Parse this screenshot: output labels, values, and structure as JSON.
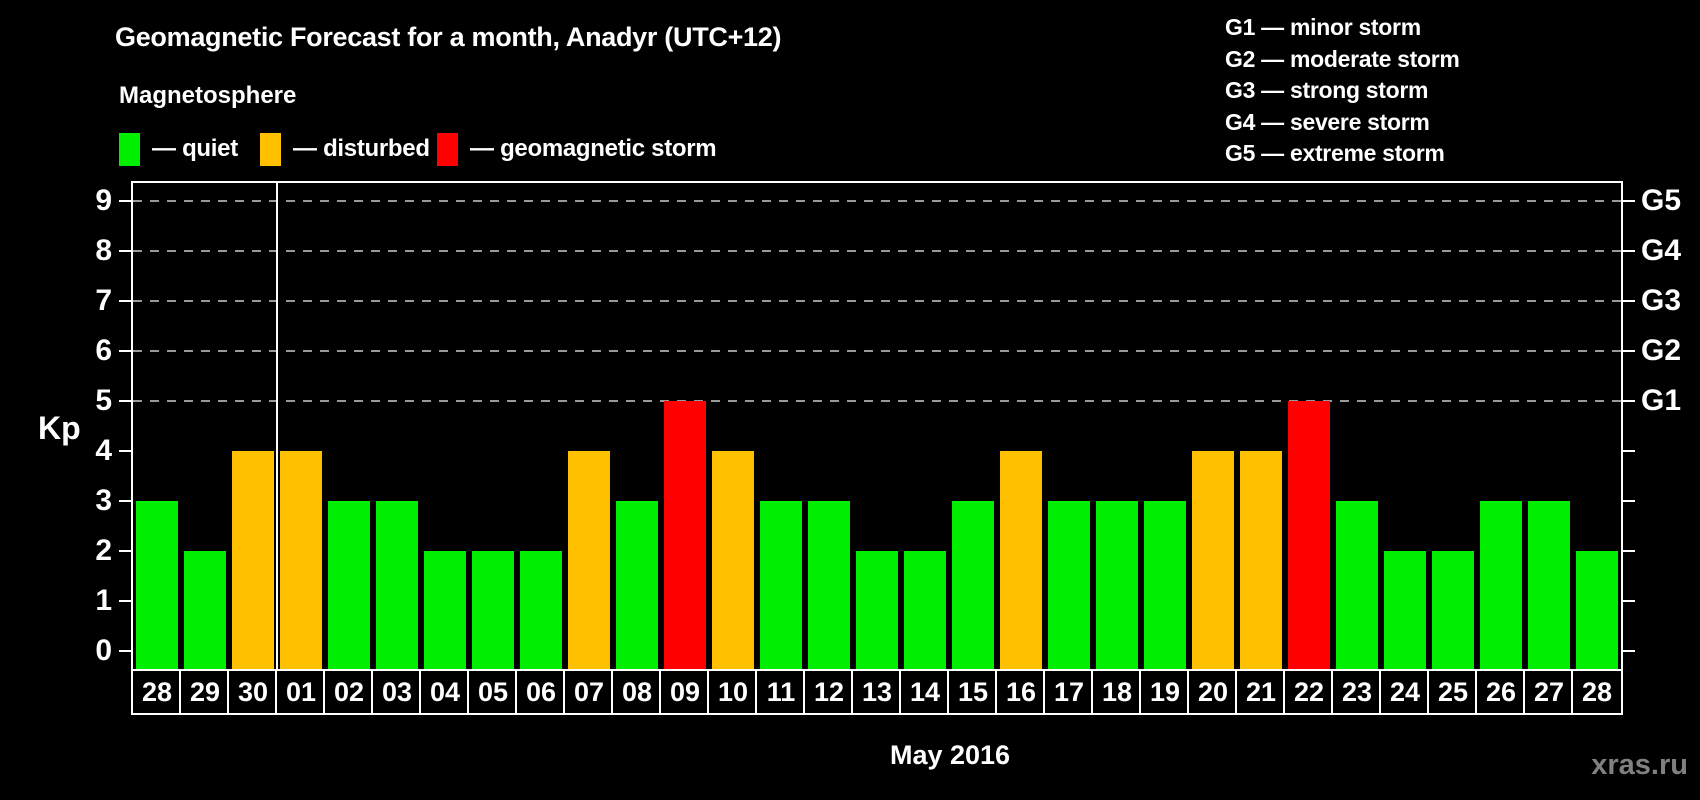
{
  "title": "Geomagnetic Forecast for a month, Anadyr (UTC+12)",
  "subtitle": "Magnetosphere",
  "legend": {
    "items": [
      {
        "name": "quiet",
        "label": "— quiet",
        "color": "#00EE00"
      },
      {
        "name": "disturbed",
        "label": "— disturbed",
        "color": "#FFC000"
      },
      {
        "name": "storm",
        "label": "— geomagnetic storm",
        "color": "#FF0000"
      }
    ]
  },
  "g_legend": [
    "G1 — minor storm",
    "G2 — moderate storm",
    "G3 — strong storm",
    "G4 — severe storm",
    "G5 — extreme storm"
  ],
  "watermark": "xras.ru",
  "colors": {
    "quiet": "#00EE00",
    "disturbed": "#FFC000",
    "storm": "#FF0000",
    "axis": "#FFFFFF",
    "grid": "#999999",
    "watermark": "#808080",
    "background": "#000000"
  },
  "chart_data": {
    "type": "bar",
    "title": "Geomagnetic Forecast for a month, Anadyr (UTC+12)",
    "ylabel": "Kp",
    "xlabel": "May 2016",
    "ylim": [
      0,
      9
    ],
    "yticks": [
      0,
      1,
      2,
      3,
      4,
      5,
      6,
      7,
      8,
      9
    ],
    "grid_levels": [
      5,
      6,
      7,
      8,
      9
    ],
    "grid": "dashed horizontal lines at Kp 5-9 only",
    "right_axis_labels": [
      {
        "kp": 5,
        "label": "G1"
      },
      {
        "kp": 6,
        "label": "G2"
      },
      {
        "kp": 7,
        "label": "G3"
      },
      {
        "kp": 8,
        "label": "G4"
      },
      {
        "kp": 9,
        "label": "G5"
      }
    ],
    "month_boundary_after_index": 2,
    "categories": [
      "28",
      "29",
      "30",
      "01",
      "02",
      "03",
      "04",
      "05",
      "06",
      "07",
      "08",
      "09",
      "10",
      "11",
      "12",
      "13",
      "14",
      "15",
      "16",
      "17",
      "18",
      "19",
      "20",
      "21",
      "22",
      "23",
      "24",
      "25",
      "26",
      "27",
      "28"
    ],
    "values": [
      3,
      2,
      4,
      4,
      3,
      3,
      2,
      2,
      2,
      4,
      3,
      5,
      4,
      3,
      3,
      2,
      2,
      3,
      4,
      3,
      3,
      3,
      4,
      4,
      5,
      3,
      2,
      2,
      3,
      3,
      2
    ],
    "statuses": [
      "quiet",
      "quiet",
      "disturbed",
      "disturbed",
      "quiet",
      "quiet",
      "quiet",
      "quiet",
      "quiet",
      "disturbed",
      "quiet",
      "storm",
      "disturbed",
      "quiet",
      "quiet",
      "quiet",
      "quiet",
      "quiet",
      "disturbed",
      "quiet",
      "quiet",
      "quiet",
      "disturbed",
      "disturbed",
      "storm",
      "quiet",
      "quiet",
      "quiet",
      "quiet",
      "quiet",
      "quiet"
    ]
  }
}
